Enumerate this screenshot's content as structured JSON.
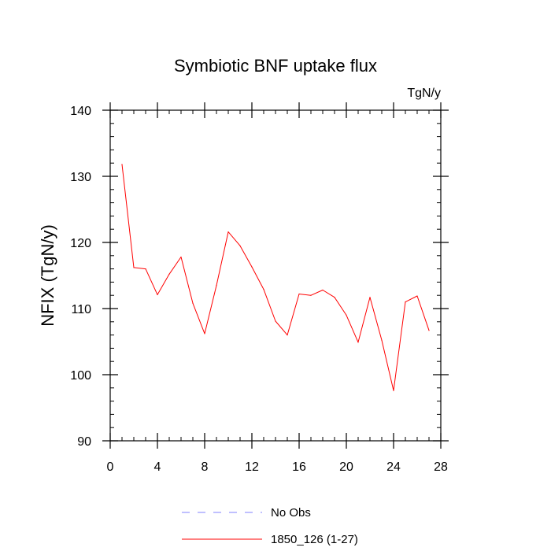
{
  "chart_data": {
    "type": "line",
    "title": "Symbiotic BNF uptake flux",
    "units": "TgN/y",
    "xlabel": "",
    "ylabel": "NFIX  (TgN/y)",
    "xlim": [
      0,
      28
    ],
    "ylim": [
      90,
      140
    ],
    "x_ticks": [
      0,
      4,
      8,
      12,
      16,
      20,
      24,
      28
    ],
    "y_ticks": [
      90,
      100,
      110,
      120,
      130,
      140
    ],
    "x_tick_labels": [
      "0",
      "4",
      "8",
      "12",
      "16",
      "20",
      "24",
      "28"
    ],
    "y_tick_labels": [
      "90",
      "100",
      "110",
      "120",
      "130",
      "140"
    ],
    "grid": false,
    "legend_position": "bottom",
    "series": [
      {
        "name": "1850_126 (1-27)",
        "color": "#ff0000",
        "line_style": "solid",
        "x": [
          1,
          2,
          3,
          4,
          5,
          6,
          7,
          8,
          9,
          10,
          11,
          12,
          13,
          14,
          15,
          16,
          17,
          18,
          19,
          20,
          21,
          22,
          23,
          24,
          25,
          26,
          27
        ],
        "y": [
          131.8,
          116.2,
          116.0,
          112.1,
          115.2,
          117.8,
          110.8,
          106.2,
          113.5,
          121.6,
          119.5,
          116.3,
          112.9,
          108.1,
          106.0,
          112.2,
          112.0,
          112.8,
          111.7,
          109.0,
          104.9,
          111.7,
          105.2,
          97.6,
          111.0,
          111.9,
          106.7
        ]
      }
    ],
    "legend": [
      {
        "label": "No Obs",
        "color": "#8080ff",
        "line_style": "dashed"
      },
      {
        "label": "1850_126 (1-27)",
        "color": "#ff0000",
        "line_style": "solid"
      }
    ]
  }
}
